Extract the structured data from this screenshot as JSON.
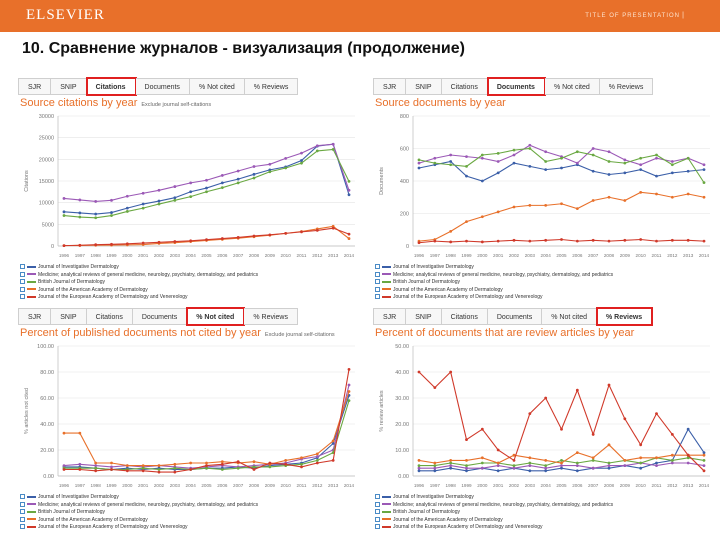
{
  "header": {
    "logo": "ELSEVIER",
    "presentation": "TITLE OF PRESENTATION",
    "page_sep": "|"
  },
  "slide_title": "10. Сравнение журналов - визуализация (продолжение)",
  "tabs": [
    "SJR",
    "SNIP",
    "Citations",
    "Documents",
    "% Not cited",
    "% Reviews"
  ],
  "colors": {
    "accent": "#e8702a",
    "highlight": "#e02020",
    "series": [
      "#3b5fa8",
      "#9b59b6",
      "#6aa842",
      "#e8702a",
      "#d0392a"
    ]
  },
  "legend": [
    "Journal of Investigative Dermatology",
    "Medicine; analytical reviews of general medicine, neurology, psychiatry, dermatology, and pediatrics",
    "British Journal of Dermatology",
    "Journal of the American Academy of Dermatology",
    "Journal of the European Academy of Dermatology and Venereology"
  ],
  "panels": [
    {
      "selected_tab": 2,
      "title": "Source citations by year",
      "subtitle": "Exclude journal self-citations",
      "chart_data": {
        "type": "line",
        "ylabel": "Citations",
        "ylim": [
          0,
          35000
        ],
        "yticks": [
          "0",
          "5000",
          "10000",
          "15000",
          "20000",
          "25000",
          "30000"
        ],
        "x": [
          "1996",
          "1997",
          "1998",
          "1999",
          "2000",
          "2001",
          "2002",
          "2003",
          "2004",
          "2005",
          "2006",
          "2007",
          "2008",
          "2009",
          "2010",
          "2011",
          "2012",
          "2013",
          "2014"
        ],
        "series": [
          {
            "values": [
              9200,
              8900,
              8600,
              9000,
              10200,
              11300,
              12100,
              13000,
              14600,
              15600,
              17000,
              18000,
              19300,
              20500,
              21300,
              23000,
              26900,
              27400,
              13800
            ]
          },
          {
            "values": [
              12800,
              12400,
              12000,
              12300,
              13400,
              14200,
              15000,
              16000,
              17000,
              17700,
              19000,
              20200,
              21400,
              22000,
              23600,
              25000,
              27000,
              27400,
              15000
            ]
          },
          {
            "values": [
              8200,
              7800,
              7600,
              8200,
              9300,
              10200,
              11300,
              12300,
              13300,
              14600,
              15700,
              17000,
              18300,
              20000,
              21000,
              22300,
              25600,
              26000,
              17400
            ]
          },
          {
            "values": [
              100,
              150,
              200,
              250,
              300,
              400,
              700,
              900,
              1200,
              1500,
              1800,
              2100,
              2500,
              2900,
              3400,
              3900,
              4600,
              5300,
              2000
            ]
          },
          {
            "values": [
              100,
              200,
              350,
              450,
              600,
              800,
              1000,
              1200,
              1400,
              1700,
              2000,
              2300,
              2700,
              3000,
              3400,
              3800,
              4200,
              4800,
              3200
            ]
          }
        ]
      }
    },
    {
      "selected_tab": 3,
      "title": "Source documents by year",
      "subtitle": "",
      "chart_data": {
        "type": "line",
        "ylabel": "Documents",
        "ylim": [
          0,
          800
        ],
        "yticks": [
          "0",
          "200",
          "400",
          "600",
          "800"
        ],
        "x": [
          "1996",
          "1997",
          "1998",
          "1999",
          "2000",
          "2001",
          "2002",
          "2003",
          "2004",
          "2005",
          "2006",
          "2007",
          "2008",
          "2009",
          "2010",
          "2011",
          "2012",
          "2013",
          "2014"
        ],
        "series": [
          {
            "values": [
              480,
              500,
              520,
              430,
              400,
              450,
              510,
              490,
              470,
              480,
              500,
              460,
              440,
              450,
              470,
              430,
              450,
              460,
              470
            ]
          },
          {
            "values": [
              510,
              540,
              560,
              550,
              540,
              520,
              560,
              620,
              580,
              550,
              510,
              600,
              580,
              530,
              500,
              540,
              520,
              540,
              500
            ]
          },
          {
            "values": [
              530,
              510,
              500,
              490,
              560,
              570,
              590,
              600,
              520,
              540,
              580,
              560,
              520,
              510,
              540,
              560,
              500,
              540,
              390
            ]
          },
          {
            "values": [
              30,
              40,
              90,
              150,
              180,
              210,
              240,
              250,
              250,
              260,
              230,
              280,
              300,
              280,
              330,
              320,
              300,
              320,
              300
            ]
          },
          {
            "values": [
              20,
              30,
              25,
              30,
              25,
              30,
              35,
              30,
              35,
              40,
              30,
              35,
              30,
              35,
              40,
              30,
              35,
              35,
              30
            ]
          }
        ]
      }
    },
    {
      "selected_tab": 4,
      "title": "Percent of published documents not cited by year",
      "subtitle": "Exclude journal self-citations",
      "chart_data": {
        "type": "line",
        "ylabel": "% articles not cited",
        "ylim": [
          0,
          100
        ],
        "yticks": [
          "0.00",
          "20.00",
          "40.00",
          "60.00",
          "80.00",
          "100.00"
        ],
        "x": [
          "1996",
          "1997",
          "1998",
          "1999",
          "2000",
          "2001",
          "2002",
          "2003",
          "2004",
          "2005",
          "2006",
          "2007",
          "2008",
          "2009",
          "2010",
          "2011",
          "2012",
          "2013",
          "2014"
        ],
        "series": [
          {
            "values": [
              7,
              7,
              6,
              5,
              6,
              5,
              6,
              5,
              5,
              6,
              6,
              7,
              6,
              8,
              9,
              10,
              14,
              25,
              62
            ]
          },
          {
            "values": [
              8,
              9,
              8,
              7,
              8,
              7,
              8,
              7,
              6,
              7,
              8,
              7,
              8,
              9,
              10,
              13,
              15,
              20,
              70
            ]
          },
          {
            "values": [
              6,
              6,
              6,
              5,
              5,
              6,
              5,
              6,
              5,
              6,
              5,
              6,
              7,
              7,
              8,
              9,
              12,
              18,
              58
            ]
          },
          {
            "values": [
              33,
              33,
              10,
              10,
              8,
              8,
              8,
              9,
              10,
              10,
              11,
              10,
              11,
              9,
              12,
              14,
              17,
              27,
              65
            ]
          },
          {
            "values": [
              5,
              5,
              4,
              5,
              4,
              4,
              3,
              3,
              5,
              8,
              9,
              11,
              5,
              10,
              9,
              7,
              10,
              12,
              82
            ]
          }
        ]
      }
    },
    {
      "selected_tab": 5,
      "title": "Percent of documents that are review articles by year",
      "subtitle": "",
      "chart_data": {
        "type": "line",
        "ylabel": "% review articles",
        "ylim": [
          0,
          50
        ],
        "yticks": [
          "0.00",
          "10.00",
          "20.00",
          "30.00",
          "40.00",
          "50.00"
        ],
        "x": [
          "1996",
          "1997",
          "1998",
          "1999",
          "2000",
          "2001",
          "2002",
          "2003",
          "2004",
          "2005",
          "2006",
          "2007",
          "2008",
          "2009",
          "2010",
          "2011",
          "2012",
          "2013",
          "2014"
        ],
        "series": [
          {
            "values": [
              2,
              2,
              3,
              2,
              3,
              2,
              3,
              2,
              2,
              3,
              2,
              3,
              3,
              4,
              3,
              5,
              6,
              18,
              9
            ]
          },
          {
            "values": [
              3,
              3,
              4,
              3,
              3,
              4,
              3,
              4,
              3,
              4,
              4,
              3,
              4,
              4,
              5,
              4,
              5,
              5,
              4
            ]
          },
          {
            "values": [
              4,
              4,
              5,
              4,
              5,
              5,
              4,
              5,
              4,
              6,
              5,
              6,
              5,
              6,
              5,
              7,
              6,
              7,
              6
            ]
          },
          {
            "values": [
              6,
              5,
              6,
              6,
              7,
              5,
              8,
              7,
              6,
              5,
              9,
              7,
              12,
              6,
              7,
              7,
              8,
              8,
              8
            ]
          },
          {
            "values": [
              40,
              34,
              40,
              14,
              18,
              10,
              6,
              24,
              30,
              18,
              33,
              16,
              35,
              22,
              12,
              24,
              16,
              8,
              2
            ]
          }
        ]
      }
    }
  ]
}
